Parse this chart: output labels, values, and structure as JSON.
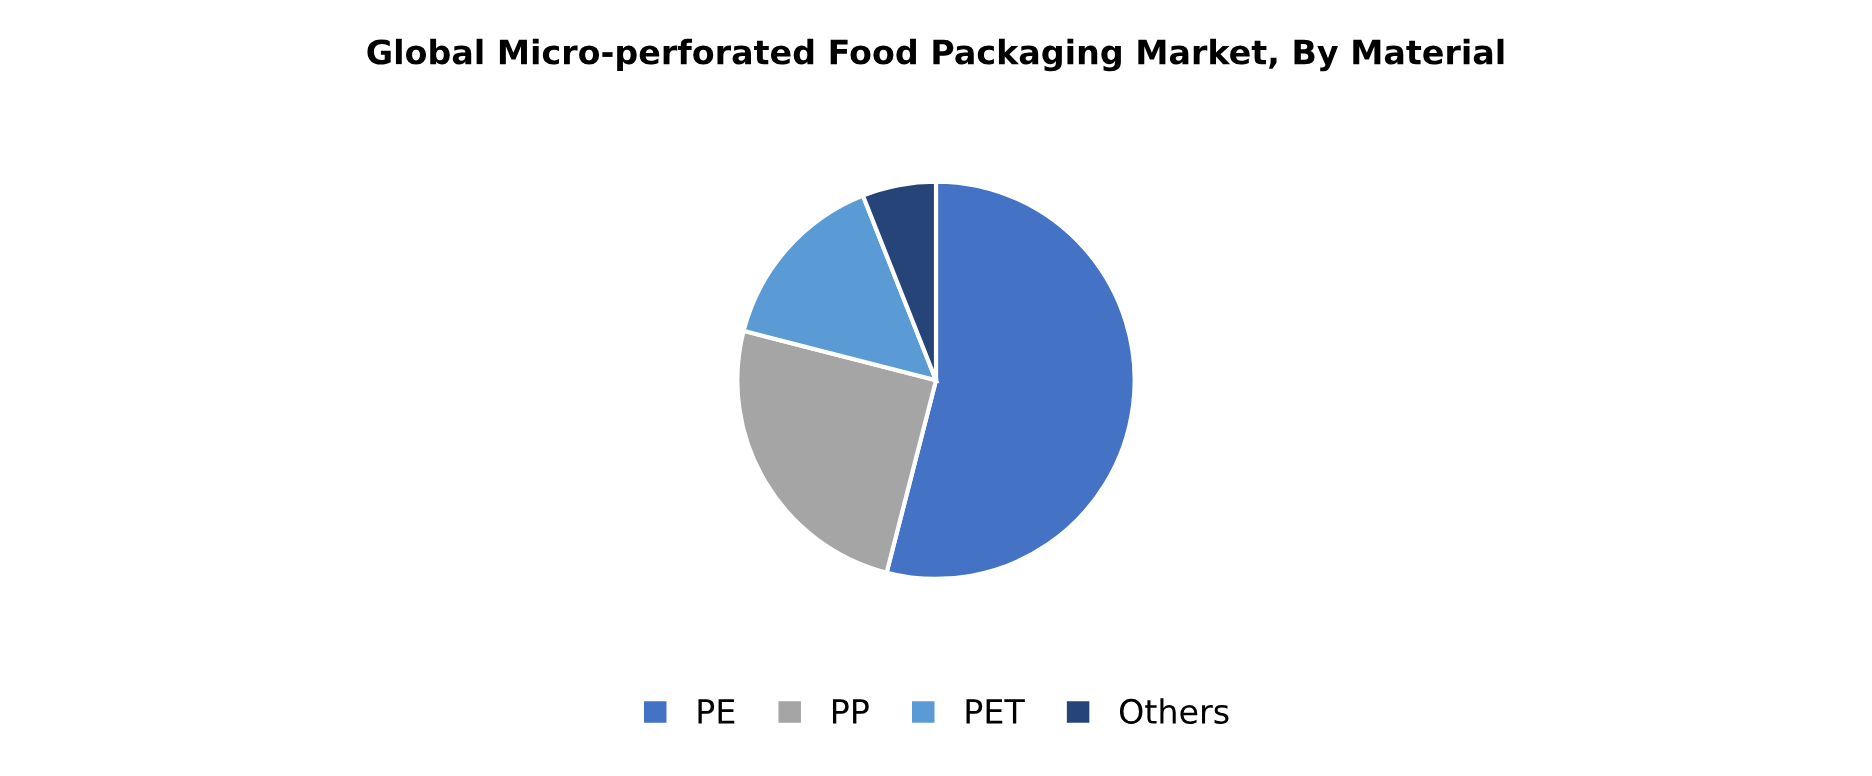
{
  "chart_data": {
    "type": "pie",
    "title": "Global Micro-perforated Food Packaging Market, By Material",
    "categories": [
      "PE",
      "PP",
      "PET",
      "Others"
    ],
    "values": [
      54,
      25,
      15,
      6
    ],
    "colors": [
      "#4472c4",
      "#a5a5a5",
      "#5b9bd5",
      "#264478"
    ],
    "legend": "bottom"
  }
}
